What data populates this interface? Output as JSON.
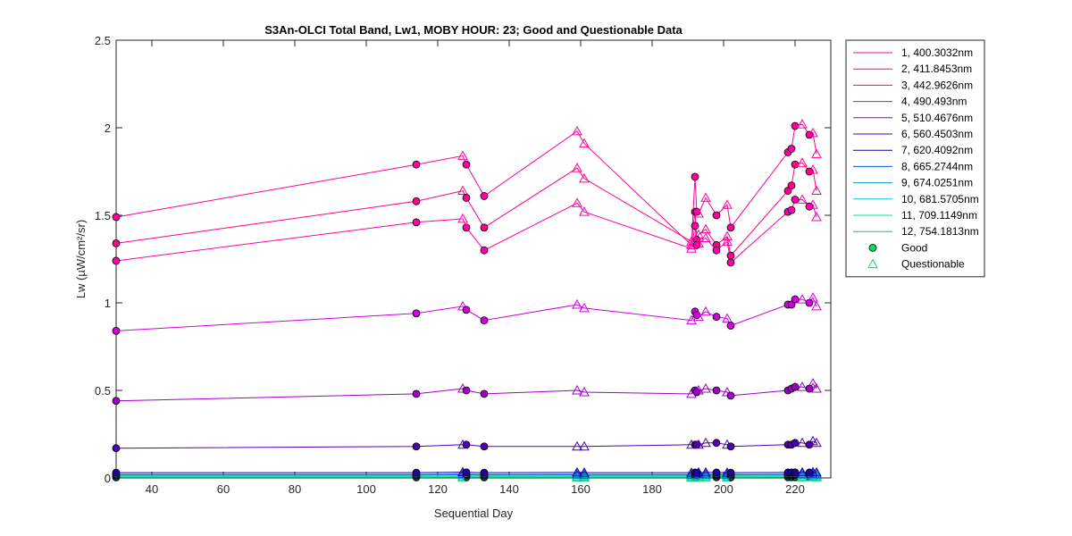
{
  "chart_data": {
    "type": "line",
    "title": "S3An-OLCI Total Band,  Lw1, MOBY HOUR: 23;  Good and Questionable Data",
    "xlabel": "Sequential Day",
    "ylabel": "Lw (µW/cm²/sr)",
    "xlim": [
      30,
      230
    ],
    "ylim": [
      0,
      2.5
    ],
    "xticks": [
      "40",
      "60",
      "80",
      "100",
      "120",
      "140",
      "160",
      "180",
      "200",
      "220"
    ],
    "xtick_values": [
      40,
      60,
      80,
      100,
      120,
      140,
      160,
      180,
      200,
      220
    ],
    "yticks": [
      "0",
      "0.5",
      "1",
      "1.5",
      "2",
      "2.5"
    ],
    "ytick_values": [
      0,
      0.5,
      1,
      1.5,
      2,
      2.5
    ],
    "grid": false,
    "legend_position": "outside-right",
    "x": [
      30,
      114,
      127,
      128,
      133,
      159,
      161,
      191,
      192,
      192.5,
      193,
      195,
      198,
      201,
      202,
      218,
      219,
      220,
      222,
      224,
      225,
      226
    ],
    "flags": [
      "G",
      "G",
      "Q",
      "G",
      "G",
      "Q",
      "Q",
      "Q",
      "G",
      "G",
      "Q",
      "Q",
      "G",
      "Q",
      "G",
      "G",
      "G",
      "G",
      "Q",
      "G",
      "Q",
      "Q"
    ],
    "marker_legend": [
      {
        "label": "Good",
        "marker": "circle",
        "color": "#00e060"
      },
      {
        "label": "Questionable",
        "marker": "triangle",
        "color": "#00e060"
      }
    ],
    "series": [
      {
        "name": "1, 400.3032nm",
        "color": "#ff00b0",
        "values": [
          1.24,
          1.46,
          1.48,
          1.43,
          1.3,
          1.57,
          1.52,
          1.31,
          1.44,
          1.33,
          1.34,
          1.37,
          1.3,
          1.35,
          1.23,
          1.52,
          1.53,
          1.59,
          1.59,
          1.55,
          1.56,
          1.49
        ]
      },
      {
        "name": "2, 411.8453nm",
        "color": "#ff00a0",
        "values": [
          1.49,
          1.79,
          1.84,
          1.79,
          1.61,
          1.98,
          1.91,
          1.33,
          1.72,
          1.52,
          1.51,
          1.6,
          1.5,
          1.56,
          1.43,
          1.86,
          1.88,
          2.01,
          2.02,
          1.96,
          1.97,
          1.85
        ]
      },
      {
        "name": "3, 442.9626nm",
        "color": "#ff0088",
        "values": [
          1.34,
          1.58,
          1.64,
          1.6,
          1.43,
          1.77,
          1.71,
          1.35,
          1.52,
          1.36,
          1.39,
          1.42,
          1.33,
          1.38,
          1.27,
          1.64,
          1.67,
          1.79,
          1.8,
          1.75,
          1.76,
          1.64
        ]
      },
      {
        "name": "4,  490.493nm",
        "color": "#d000e0",
        "values": [
          0.84,
          0.94,
          0.98,
          0.96,
          0.9,
          0.99,
          0.97,
          0.9,
          0.95,
          0.93,
          0.92,
          0.95,
          0.92,
          0.91,
          0.87,
          0.99,
          0.99,
          1.02,
          1.02,
          1.0,
          1.03,
          0.98
        ]
      },
      {
        "name": "5, 510.4676nm",
        "color": "#a000c8",
        "values": [
          0.44,
          0.48,
          0.51,
          0.5,
          0.48,
          0.5,
          0.49,
          0.48,
          0.5,
          0.49,
          0.5,
          0.51,
          0.5,
          0.49,
          0.47,
          0.5,
          0.51,
          0.52,
          0.52,
          0.51,
          0.54,
          0.51
        ]
      },
      {
        "name": "6, 560.4503nm",
        "color": "#5000b0",
        "values": [
          0.17,
          0.18,
          0.19,
          0.19,
          0.18,
          0.18,
          0.18,
          0.19,
          0.19,
          0.19,
          0.19,
          0.2,
          0.2,
          0.19,
          0.18,
          0.19,
          0.19,
          0.2,
          0.2,
          0.19,
          0.21,
          0.2
        ]
      },
      {
        "name": "7, 620.4092nm",
        "color": "#2000a0",
        "values": [
          0.03,
          0.03,
          0.033,
          0.032,
          0.03,
          0.031,
          0.03,
          0.03,
          0.031,
          0.03,
          0.031,
          0.031,
          0.031,
          0.03,
          0.03,
          0.031,
          0.031,
          0.032,
          0.032,
          0.031,
          0.033,
          0.031
        ]
      },
      {
        "name": "8, 665.2744nm",
        "color": "#0060d0",
        "values": [
          0.02,
          0.02,
          0.023,
          0.022,
          0.02,
          0.021,
          0.02,
          0.02,
          0.021,
          0.02,
          0.021,
          0.021,
          0.021,
          0.02,
          0.02,
          0.021,
          0.021,
          0.022,
          0.022,
          0.021,
          0.023,
          0.021
        ]
      },
      {
        "name": "9, 674.0251nm",
        "color": "#0090e0",
        "values": [
          0.018,
          0.018,
          0.02,
          0.019,
          0.018,
          0.019,
          0.018,
          0.018,
          0.019,
          0.018,
          0.019,
          0.019,
          0.019,
          0.018,
          0.018,
          0.019,
          0.019,
          0.02,
          0.02,
          0.019,
          0.021,
          0.019
        ]
      },
      {
        "name": "10, 681.5705nm",
        "color": "#00c8e0",
        "values": [
          0.014,
          0.014,
          0.016,
          0.015,
          0.014,
          0.015,
          0.014,
          0.014,
          0.015,
          0.014,
          0.015,
          0.015,
          0.015,
          0.014,
          0.014,
          0.015,
          0.015,
          0.016,
          0.016,
          0.015,
          0.017,
          0.015
        ]
      },
      {
        "name": "11, 709.1149nm",
        "color": "#00e0a0",
        "values": [
          0.008,
          0.008,
          0.009,
          0.009,
          0.008,
          0.008,
          0.008,
          0.008,
          0.009,
          0.008,
          0.009,
          0.009,
          0.009,
          0.008,
          0.008,
          0.009,
          0.009,
          0.009,
          0.009,
          0.009,
          0.01,
          0.009
        ]
      },
      {
        "name": "12, 754.1813nm",
        "color": "#00d060",
        "values": [
          0.003,
          0.003,
          0.004,
          0.004,
          0.003,
          0.003,
          0.003,
          0.003,
          0.004,
          0.003,
          0.004,
          0.004,
          0.004,
          0.003,
          0.003,
          0.004,
          0.004,
          0.004,
          0.004,
          0.004,
          0.005,
          0.004
        ]
      }
    ]
  }
}
